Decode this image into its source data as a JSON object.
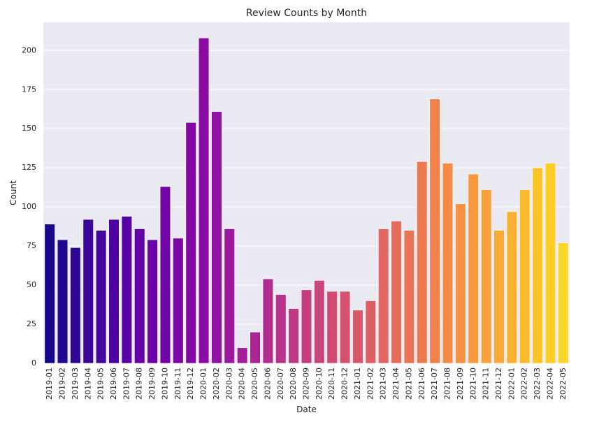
{
  "chart_data": {
    "type": "bar",
    "title": "Review Counts by Month",
    "xlabel": "Date",
    "ylabel": "Count",
    "ylim": [
      0,
      218
    ],
    "yticks": [
      0,
      25,
      50,
      75,
      100,
      125,
      150,
      175,
      200
    ],
    "grid": true,
    "palette": "plasma",
    "background": "#eaeaf2",
    "categories": [
      "2019-01",
      "2019-02",
      "2019-03",
      "2019-04",
      "2019-05",
      "2019-06",
      "2019-07",
      "2019-08",
      "2019-09",
      "2019-10",
      "2019-11",
      "2019-12",
      "2020-01",
      "2020-02",
      "2020-03",
      "2020-04",
      "2020-05",
      "2020-06",
      "2020-07",
      "2020-08",
      "2020-09",
      "2020-10",
      "2020-11",
      "2020-12",
      "2021-01",
      "2021-02",
      "2021-03",
      "2021-04",
      "2021-05",
      "2021-06",
      "2021-07",
      "2021-08",
      "2021-09",
      "2021-10",
      "2021-11",
      "2021-12",
      "2022-01",
      "2022-02",
      "2022-03",
      "2022-04",
      "2022-05"
    ],
    "values": [
      89,
      79,
      74,
      92,
      85,
      92,
      94,
      86,
      79,
      113,
      80,
      154,
      208,
      161,
      86,
      10,
      20,
      54,
      44,
      35,
      47,
      53,
      46,
      46,
      34,
      40,
      86,
      91,
      85,
      129,
      169,
      128,
      102,
      121,
      111,
      85,
      97,
      111,
      125,
      128,
      77
    ]
  }
}
